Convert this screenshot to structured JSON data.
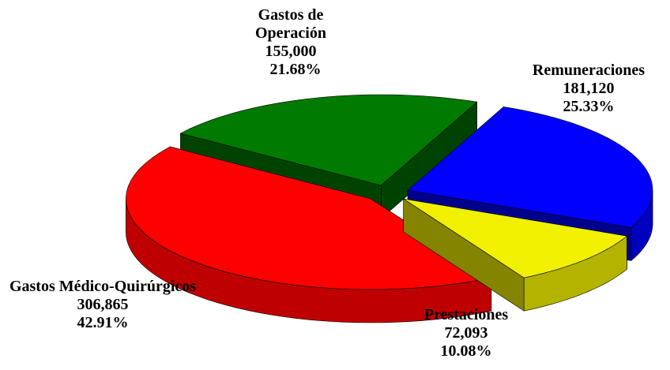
{
  "chart_data": {
    "type": "pie",
    "categories": [
      "Gastos de Operación",
      "Remuneraciones",
      "Prestaciones",
      "Gastos Médico-Quirúrgicos"
    ],
    "values": [
      21.68,
      25.33,
      10.08,
      42.91
    ],
    "value_labels": [
      "21.68%",
      "25.33%",
      "10.08%",
      "42.91%"
    ],
    "amounts": [
      155000,
      181120,
      72093,
      306865
    ],
    "amount_labels": [
      "155,000",
      "181,120",
      "72,093",
      "306,865"
    ],
    "colors": [
      "#007a00",
      "#0000ff",
      "#f0f000",
      "#ff0000"
    ]
  }
}
